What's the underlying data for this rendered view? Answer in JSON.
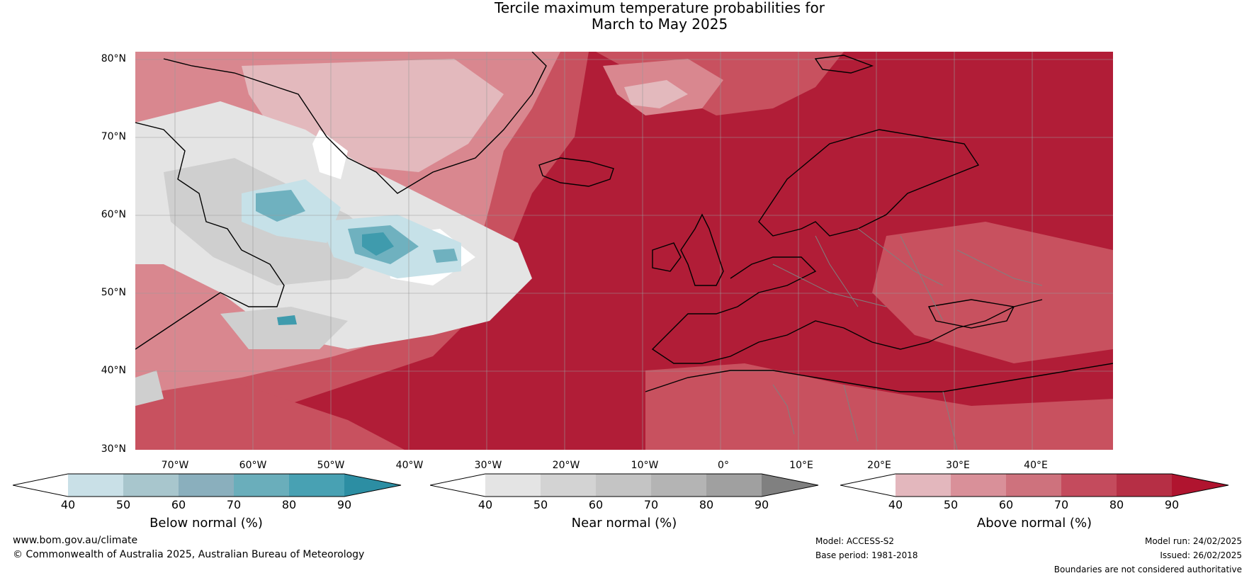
{
  "title": {
    "line1": "Tercile maximum temperature probabilities for",
    "line2": "March to May 2025"
  },
  "map": {
    "latitude_labels": [
      "80°N",
      "70°N",
      "60°N",
      "50°N",
      "40°N",
      "30°N"
    ],
    "longitude_labels": [
      "70°W",
      "60°W",
      "50°W",
      "40°W",
      "30°W",
      "20°W",
      "10°W",
      "0°",
      "10°E",
      "20°E",
      "30°E",
      "40°E"
    ],
    "colors": {
      "above_max": "#b11d37",
      "above_mid": "#c8515f",
      "above_light": "#d9878f",
      "above_pale": "#e3b9bd",
      "near_light": "#e4e4e4",
      "near_mid": "#cfcfcf",
      "below_light": "#c6e1e8",
      "below_mid": "#6fb1bf",
      "below_dark": "#3f9bad",
      "coastline": "#000000",
      "borders": "#808080"
    }
  },
  "colorbars": [
    {
      "label": "Below normal (%)",
      "ticks": [
        "40",
        "50",
        "60",
        "70",
        "80",
        "90"
      ],
      "colors": [
        "#ffffff",
        "#c9e0e7",
        "#a8c6cd",
        "#8aafbd",
        "#6aaebb",
        "#48a1b3",
        "#2c8ea3"
      ]
    },
    {
      "label": "Near normal (%)",
      "ticks": [
        "40",
        "50",
        "60",
        "70",
        "80",
        "90"
      ],
      "colors": [
        "#ffffff",
        "#e4e4e4",
        "#d3d3d3",
        "#c4c4c4",
        "#b4b4b4",
        "#a0a0a0",
        "#808080"
      ]
    },
    {
      "label": "Above normal (%)",
      "ticks": [
        "40",
        "50",
        "60",
        "70",
        "80",
        "90"
      ],
      "colors": [
        "#ffffff",
        "#e3b7bd",
        "#d99099",
        "#ce727d",
        "#c44b5d",
        "#b62f45",
        "#b0142f"
      ]
    }
  ],
  "footer": {
    "website": "www.bom.gov.au/climate",
    "copyright": "© Commonwealth of Australia 2025, Australian Bureau of Meteorology",
    "model": "Model: ACCESS-S2",
    "base_period": "Base period: 1981-2018",
    "model_run": "Model run: 24/02/2025",
    "issued": "Issued: 26/02/2025",
    "disclaimer": "Boundaries are not considered authoritative"
  }
}
